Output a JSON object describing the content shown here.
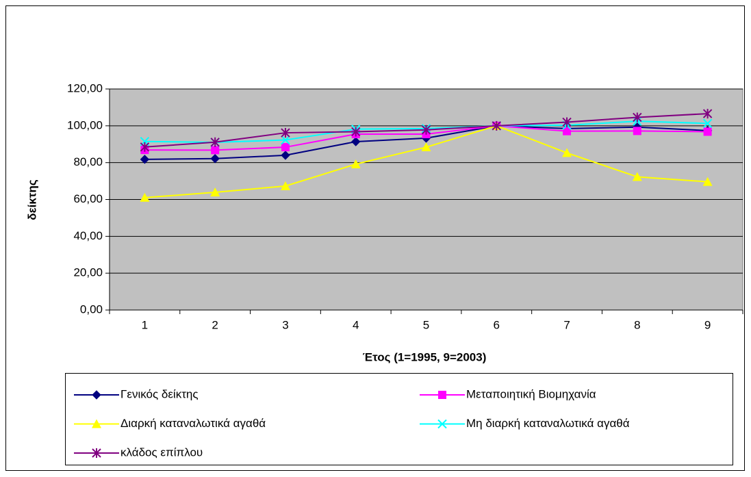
{
  "chart_data": {
    "type": "line",
    "x_label": "Έτος (1=1995, 9=2003)",
    "y_label": "δείκτης",
    "categories": [
      "1",
      "2",
      "3",
      "4",
      "5",
      "6",
      "7",
      "8",
      "9"
    ],
    "ylim": [
      0,
      120
    ],
    "yticks": [
      {
        "value": 0,
        "label": "0,00"
      },
      {
        "value": 20,
        "label": "20,00"
      },
      {
        "value": 40,
        "label": "40,00"
      },
      {
        "value": 60,
        "label": "60,00"
      },
      {
        "value": 80,
        "label": "80,00"
      },
      {
        "value": 100,
        "label": "100,00"
      },
      {
        "value": 120,
        "label": "120,00"
      }
    ],
    "grid": true,
    "plot_background": "#c0c0c0",
    "legend": "bottom",
    "series": [
      {
        "name": "Γενικός δείκτης",
        "color": "#000080",
        "marker": "diamond",
        "values": [
          81.8,
          82.2,
          84,
          91.4,
          93.3,
          100,
          98.5,
          99.3,
          97.4
        ]
      },
      {
        "name": "Μεταποιητική  Βιομηχανία",
        "color": "#ff00ff",
        "marker": "square",
        "values": [
          86.9,
          86.8,
          88.4,
          95.5,
          95.5,
          100,
          97.1,
          97.2,
          96.8
        ]
      },
      {
        "name": "Διαρκή καταναλωτικά αγαθά",
        "color": "#ffff00",
        "marker": "triangle",
        "values": [
          61,
          63.9,
          67.3,
          79.2,
          88.4,
          100,
          85.3,
          72.3,
          69.6
        ]
      },
      {
        "name": "Μη διαρκή καταναλωτικά αγαθά",
        "color": "#00ffff",
        "marker": "x",
        "values": [
          91.5,
          91,
          92.3,
          98.2,
          98.5,
          100,
          100.3,
          102.5,
          101.3
        ]
      },
      {
        "name": "κλάδος επίπλου",
        "color": "#800080",
        "marker": "star",
        "values": [
          88.5,
          91.1,
          96.2,
          96.8,
          97.8,
          100,
          102,
          104.6,
          106.6
        ]
      }
    ]
  }
}
